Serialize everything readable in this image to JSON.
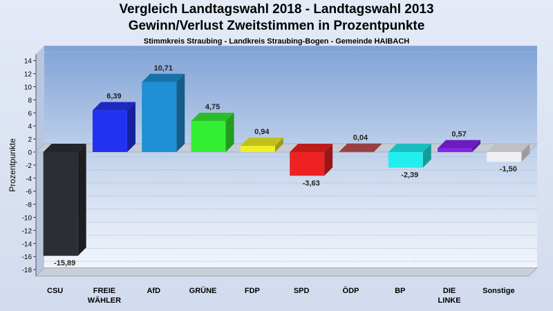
{
  "chart_data": {
    "type": "bar",
    "title": "Vergleich Landtagswahl 2018 - Landtagswahl 2013",
    "subtitle": "Gewinn/Verlust Zweitstimmen in Prozentpunkte",
    "subtitle2": "Stimmkreis Straubing - Landkreis Straubing-Bogen - Gemeinde HAIBACH",
    "xlabel": "",
    "ylabel": "Prozentpunkte",
    "ylim": [
      -19,
      15
    ],
    "yticks": [
      14,
      12,
      10,
      8,
      6,
      4,
      2,
      0,
      -2,
      -4,
      -6,
      -8,
      -10,
      -12,
      -14,
      -16,
      -18
    ],
    "grid": true,
    "categories": [
      {
        "label": [
          "CSU"
        ],
        "value": -15.89,
        "value_label": "-15,89",
        "color": "#2b2e33"
      },
      {
        "label": [
          "FREIE",
          "WÄHLER"
        ],
        "value": 6.39,
        "value_label": "6,39",
        "color": "#2233f0"
      },
      {
        "label": [
          "AfD"
        ],
        "value": 10.71,
        "value_label": "10,71",
        "color": "#1e8fd4"
      },
      {
        "label": [
          "GRÜNE"
        ],
        "value": 4.75,
        "value_label": "4,75",
        "color": "#33ee33"
      },
      {
        "label": [
          "FDP"
        ],
        "value": 0.94,
        "value_label": "0,94",
        "color": "#f0f020"
      },
      {
        "label": [
          "SPD"
        ],
        "value": -3.63,
        "value_label": "-3,63",
        "color": "#ee2222"
      },
      {
        "label": [
          "ÖDP"
        ],
        "value": 0.04,
        "value_label": "0,04",
        "color": "#c05050"
      },
      {
        "label": [
          "BP"
        ],
        "value": -2.39,
        "value_label": "-2,39",
        "color": "#22eeee"
      },
      {
        "label": [
          "DIE",
          "LINKE"
        ],
        "value": 0.57,
        "value_label": "0,57",
        "color": "#8822ee"
      },
      {
        "label": [
          "Sonstige"
        ],
        "value": -1.5,
        "value_label": "-1,50",
        "color": "#f0f0f4"
      }
    ]
  }
}
